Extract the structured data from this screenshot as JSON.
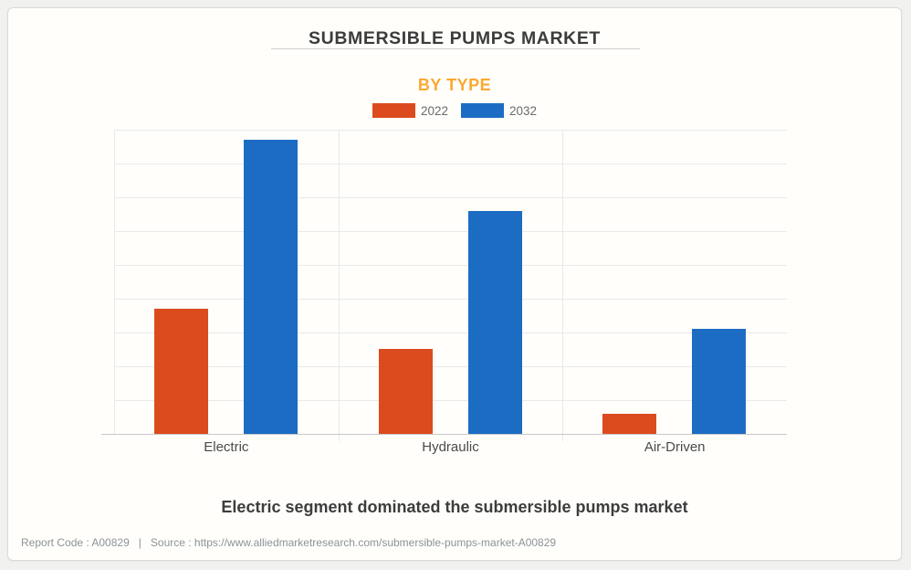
{
  "page": {
    "caption": "Electric segment dominated the submersible pumps market",
    "footer": {
      "report_code": "Report Code : A00829",
      "separator": "|",
      "source": "Source : https://www.alliedmarketresearch.com/submersible-pumps-market-A00829"
    }
  },
  "chart_data": {
    "type": "bar",
    "title": "SUBMERSIBLE PUMPS MARKET",
    "subtitle": "BY TYPE",
    "categories": [
      "Electric",
      "Hydraulic",
      "Air-Driven"
    ],
    "series": [
      {
        "name": "2022",
        "color": "#dc4b1d",
        "values": [
          3.7,
          2.5,
          0.6
        ]
      },
      {
        "name": "2032",
        "color": "#1c6cc4",
        "values": [
          8.7,
          6.6,
          3.1
        ]
      }
    ],
    "xlabel": "",
    "ylabel": "",
    "ylim": [
      0,
      9
    ],
    "grid": true,
    "y_ticks_visible": false,
    "legend_position": "top-center"
  },
  "colors": {
    "title_text": "#3c3c3c",
    "subtitle_text": "#fba82f",
    "caption_text": "#3d3d3d",
    "footer_text": "#8d9297",
    "gridline": "#e9e9e9",
    "axis_line": "#c9c9c9",
    "card_background": "#fffefb",
    "page_background": "#f1f1ef"
  }
}
